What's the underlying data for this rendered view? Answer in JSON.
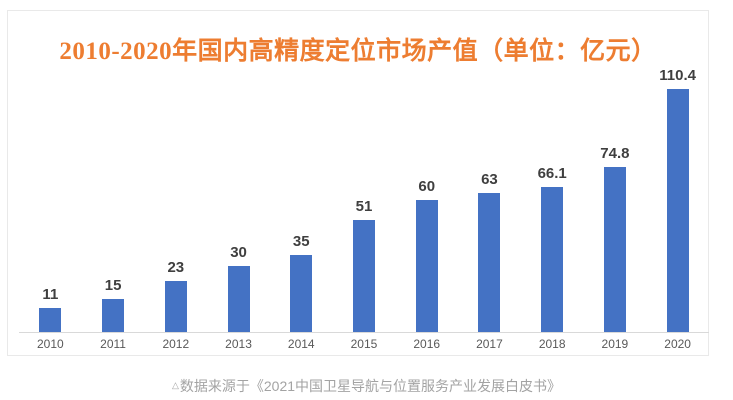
{
  "chart_data": {
    "type": "bar",
    "title": "2010-2020年国内高精度定位市场产值（单位：亿元）",
    "categories": [
      "2010",
      "2011",
      "2012",
      "2013",
      "2014",
      "2015",
      "2016",
      "2017",
      "2018",
      "2019",
      "2020"
    ],
    "values": [
      11,
      15,
      23,
      30,
      35,
      51,
      60,
      63,
      66.1,
      74.8,
      110.4
    ],
    "value_labels": [
      "11",
      "15",
      "23",
      "30",
      "35",
      "51",
      "60",
      "63",
      "66.1",
      "74.8",
      "110.4"
    ],
    "ylim": [
      0,
      118
    ],
    "xlabel": "",
    "ylabel": "",
    "grid": false,
    "legend": "none",
    "bar_color": "#4472C4",
    "title_color": "#ED7D31",
    "value_label_color": "#3f3f3f",
    "tick_label_color": "#595959",
    "axis_line_color": "#d9d9d9"
  },
  "caption": {
    "marker": "△",
    "text": "数据来源于《2021中国卫星导航与位置服务产业发展白皮书》"
  }
}
